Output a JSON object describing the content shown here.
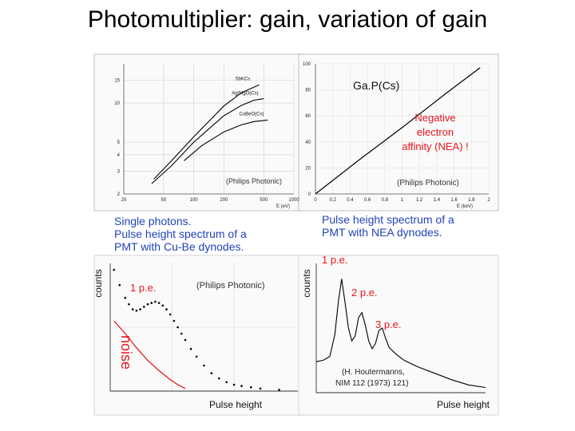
{
  "slide": {
    "title": "Photomultiplier: gain, variation of gain"
  },
  "colors": {
    "annotation_red": "#e8161b",
    "caption_blue": "#2243b8",
    "curve": "#000000"
  },
  "chart_data": [
    {
      "id": "sey-vs-energy-cube",
      "type": "line",
      "title": "",
      "xlabel": "E (eV)",
      "ylabel": "",
      "xscale": "log",
      "yscale": "log",
      "xlim": [
        20,
        1000
      ],
      "ylim": [
        2,
        20
      ],
      "x_ticks": [
        "20",
        "50",
        "100",
        "200",
        "500",
        "1000"
      ],
      "y_ticks": [
        "15",
        "10",
        "5",
        "4",
        "3",
        "2"
      ],
      "grid": true,
      "series": [
        {
          "name": "SbKCs",
          "points": [
            [
              40,
              2.6
            ],
            [
              60,
              3.6
            ],
            [
              100,
              5.5
            ],
            [
              200,
              9.5
            ],
            [
              300,
              12.0
            ],
            [
              450,
              13.8
            ]
          ]
        },
        {
          "name": "Ag/MgO(Cs)",
          "points": [
            [
              38,
              2.4
            ],
            [
              60,
              3.3
            ],
            [
              100,
              5.0
            ],
            [
              200,
              8.0
            ],
            [
              300,
              9.6
            ],
            [
              400,
              10.5
            ],
            [
              500,
              10.8
            ]
          ]
        },
        {
          "name": "CuBeO(Cs)",
          "points": [
            [
              80,
              3.6
            ],
            [
              120,
              4.7
            ],
            [
              200,
              6.0
            ],
            [
              300,
              6.8
            ],
            [
              400,
              7.2
            ],
            [
              550,
              7.4
            ]
          ]
        }
      ],
      "annotations": [
        {
          "text": "(Philips Photonic)"
        }
      ]
    },
    {
      "id": "sey-vs-energy-gap",
      "type": "line",
      "title": "",
      "xlabel": "E (keV)",
      "ylabel": "",
      "xlim": [
        0,
        2
      ],
      "ylim": [
        0,
        100
      ],
      "x_ticks": [
        "0",
        "0.2",
        "0.4",
        "0.6",
        "0.8",
        "1",
        "1.2",
        "1.4",
        "1.6",
        "1.8",
        "2"
      ],
      "y_ticks": [
        "100",
        "80",
        "60",
        "40",
        "20",
        "0"
      ],
      "grid": true,
      "series": [
        {
          "name": "Ga.P(Cs)",
          "points": [
            [
              0.0,
              0.0
            ],
            [
              0.5,
              26
            ],
            [
              1.0,
              51
            ],
            [
              1.5,
              77
            ],
            [
              1.9,
              97
            ]
          ]
        }
      ],
      "annotations": [
        {
          "text": "Negative"
        },
        {
          "text": "electron"
        },
        {
          "text": "affinity (NEA) !"
        },
        {
          "text": "(Philips Photonic)"
        }
      ]
    },
    {
      "id": "pulse-height-cube",
      "type": "scatter",
      "title": "",
      "xlabel": "Pulse height",
      "ylabel": "counts",
      "xlim": [
        0,
        100
      ],
      "ylim": [
        0,
        100
      ],
      "caption": [
        "Single photons.",
        "Pulse height spectrum of a",
        "PMT with Cu-Be dynodes."
      ],
      "series": [
        {
          "name": "spectrum",
          "points": [
            [
              2,
              95
            ],
            [
              5,
              83
            ],
            [
              8,
              73
            ],
            [
              10,
              68
            ],
            [
              12,
              64
            ],
            [
              14,
              63
            ],
            [
              16,
              64
            ],
            [
              18,
              66
            ],
            [
              20,
              68
            ],
            [
              22,
              69
            ],
            [
              24,
              70
            ],
            [
              26,
              69
            ],
            [
              28,
              67
            ],
            [
              30,
              64
            ],
            [
              32,
              60
            ],
            [
              34,
              55
            ],
            [
              36,
              50
            ],
            [
              38,
              45
            ],
            [
              40,
              40
            ],
            [
              43,
              33
            ],
            [
              46,
              27
            ],
            [
              50,
              20
            ],
            [
              54,
              14
            ],
            [
              58,
              10
            ],
            [
              62,
              7
            ],
            [
              66,
              5
            ],
            [
              70,
              4
            ],
            [
              75,
              3
            ],
            [
              80,
              2
            ],
            [
              90,
              1
            ]
          ]
        },
        {
          "name": "noise",
          "points": [
            [
              2,
              55
            ],
            [
              8,
              45
            ],
            [
              14,
              34
            ],
            [
              20,
              24
            ],
            [
              26,
              16
            ],
            [
              32,
              9
            ],
            [
              36,
              5
            ],
            [
              40,
              2
            ]
          ]
        }
      ],
      "annotations": [
        {
          "text": "1 p.e."
        },
        {
          "text": "noise"
        },
        {
          "text": "(Philips Photonic)"
        }
      ]
    },
    {
      "id": "pulse-height-nea",
      "type": "line",
      "title": "",
      "xlabel": "Pulse height",
      "ylabel": "counts",
      "xlim": [
        0,
        100
      ],
      "ylim": [
        0,
        100
      ],
      "caption": [
        "Pulse height spectrum of a",
        "PMT with NEA dynodes."
      ],
      "series": [
        {
          "name": "spectrum",
          "points": [
            [
              0,
              24
            ],
            [
              4,
              25
            ],
            [
              8,
              28
            ],
            [
              11,
              45
            ],
            [
              13,
              70
            ],
            [
              15,
              88
            ],
            [
              17,
              70
            ],
            [
              19,
              50
            ],
            [
              21,
              40
            ],
            [
              23,
              44
            ],
            [
              25,
              58
            ],
            [
              27,
              62
            ],
            [
              29,
              52
            ],
            [
              31,
              40
            ],
            [
              33,
              34
            ],
            [
              35,
              38
            ],
            [
              37,
              48
            ],
            [
              39,
              50
            ],
            [
              41,
              42
            ],
            [
              43,
              35
            ],
            [
              47,
              30
            ],
            [
              52,
              25
            ],
            [
              60,
              20
            ],
            [
              70,
              15
            ],
            [
              80,
              10
            ],
            [
              90,
              6
            ],
            [
              100,
              4
            ]
          ]
        }
      ],
      "annotations": [
        {
          "text": "1 p.e."
        },
        {
          "text": "2 p.e."
        },
        {
          "text": "3 p.e."
        },
        {
          "text": "(H. Houtermanns,"
        },
        {
          "text": "NIM 112 (1973) 121)"
        }
      ]
    }
  ]
}
